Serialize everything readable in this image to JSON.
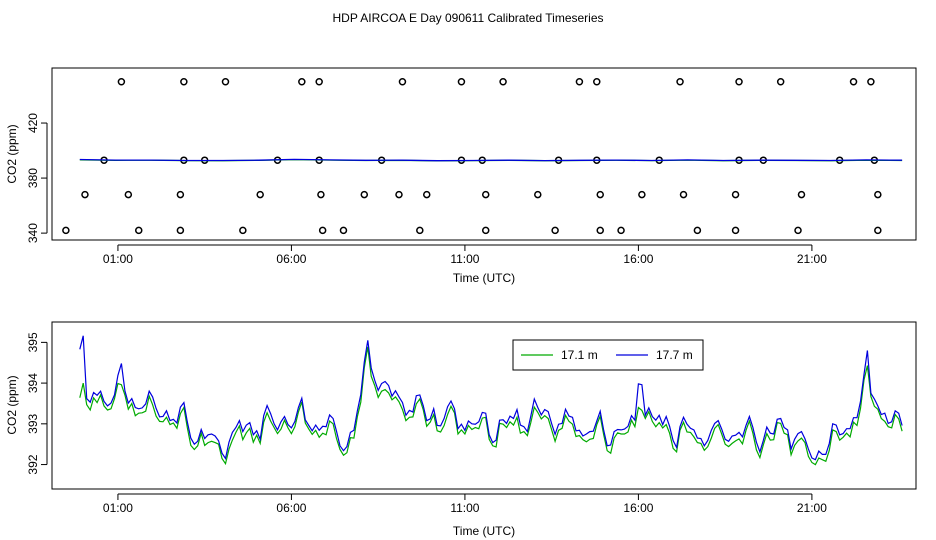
{
  "figure": {
    "title": "HDP AIRCOA E  Day 090611  Calibrated Timeseries"
  },
  "colors": {
    "series_17_1": "#00aa00",
    "series_17_7": "#0000dd",
    "axes": "#000000"
  },
  "chart_data": [
    {
      "id": "top",
      "type": "scatter+line",
      "xlabel": "Time (UTC)",
      "ylabel": "CO2 (ppm)",
      "xlim": [
        -0.9,
        24.0
      ],
      "ylim": [
        335,
        460
      ],
      "x_ticks": [
        1,
        6,
        11,
        16,
        21
      ],
      "x_tick_labels": [
        "01:00",
        "06:00",
        "11:00",
        "16:00",
        "21:00"
      ],
      "y_ticks": [
        340,
        380,
        420
      ],
      "y_tick_labels": [
        "340",
        "380",
        "420"
      ],
      "calibration_points": {
        "levels": [
          342,
          368,
          393,
          450
        ],
        "times": {
          "450": [
            1.1,
            2.9,
            4.1,
            6.3,
            6.8,
            9.2,
            10.9,
            12.1,
            14.3,
            14.8,
            17.2,
            18.9,
            20.1,
            22.2,
            22.7
          ],
          "393": [
            0.6,
            2.9,
            3.5,
            5.6,
            6.8,
            8.6,
            10.9,
            11.5,
            13.7,
            14.8,
            16.6,
            18.9,
            19.6,
            21.8,
            22.8
          ],
          "368": [
            0.05,
            1.3,
            2.8,
            5.1,
            6.85,
            8.1,
            9.1,
            9.9,
            11.6,
            13.1,
            14.9,
            16.1,
            17.3,
            18.8,
            20.7,
            22.9
          ],
          "342": [
            -0.5,
            1.6,
            2.8,
            4.6,
            6.9,
            7.5,
            9.7,
            11.6,
            13.6,
            14.9,
            15.5,
            17.7,
            18.8,
            20.6,
            22.9
          ]
        }
      },
      "series": [
        {
          "name": "17.1 m",
          "values": [
            393.2,
            392.9,
            393.0,
            392.7,
            392.6,
            392.9,
            393.4,
            393.1,
            392.8,
            392.9,
            392.5,
            392.7,
            392.9,
            392.6,
            392.8,
            393.0,
            392.7,
            393.1,
            392.6,
            392.9,
            392.8,
            392.6,
            393.0,
            392.8
          ]
        },
        {
          "name": "17.7 m",
          "values": [
            393.5,
            393.1,
            393.1,
            392.8,
            392.8,
            393.0,
            393.6,
            393.2,
            392.9,
            393.0,
            392.6,
            392.8,
            393.0,
            392.7,
            392.9,
            393.1,
            392.8,
            393.2,
            392.8,
            393.0,
            392.9,
            392.8,
            393.2,
            393.0
          ]
        }
      ]
    },
    {
      "id": "bottom",
      "type": "line",
      "xlabel": "Time (UTC)",
      "ylabel": "CO2 (ppm)",
      "xlim": [
        -0.9,
        24.0
      ],
      "ylim": [
        391.4,
        395.5
      ],
      "x_ticks": [
        1,
        6,
        11,
        16,
        21
      ],
      "x_tick_labels": [
        "01:00",
        "06:00",
        "11:00",
        "16:00",
        "21:00"
      ],
      "y_ticks": [
        392,
        393,
        394,
        395
      ],
      "y_tick_labels": [
        "392",
        "393",
        "394",
        "395"
      ],
      "legend": {
        "position": "top-right",
        "entries": [
          "17.1 m",
          "17.7 m"
        ]
      },
      "x_start": -0.1,
      "x_step": 0.1,
      "series": [
        {
          "name": "17.1 m",
          "values": []
        },
        {
          "name": "17.7 m",
          "values": []
        }
      ]
    }
  ]
}
